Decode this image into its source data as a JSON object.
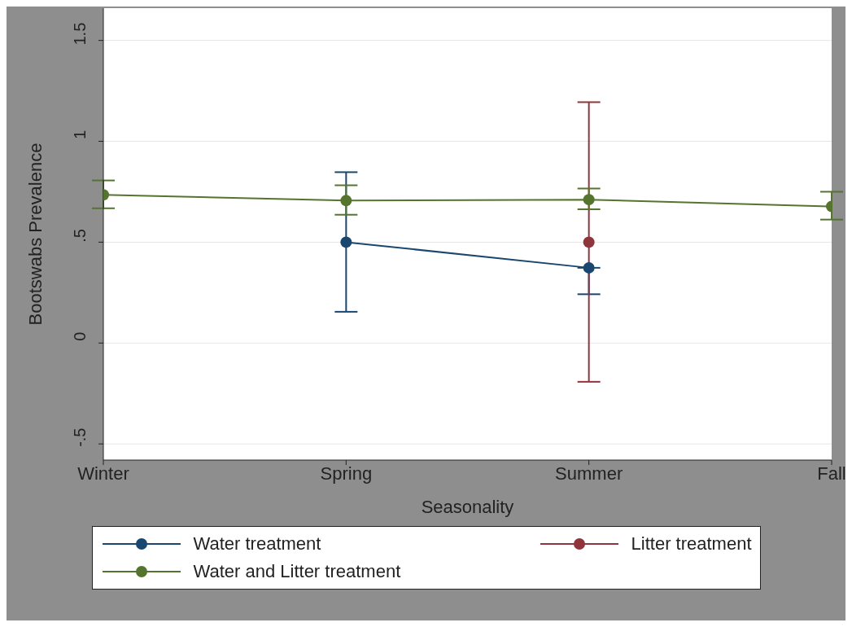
{
  "chart_data": {
    "type": "line",
    "xlabel": "Seasonality",
    "ylabel": "Bootswabs Prevalence",
    "categories": [
      "Winter",
      "Spring",
      "Summer",
      "Fall"
    ],
    "series": [
      {
        "name": "Water treatment",
        "color": "#1a476f",
        "values": [
          null,
          0.5,
          0.373,
          null
        ],
        "errors": [
          null,
          [
            0.155,
            0.847
          ],
          [
            0.242,
            0.373
          ],
          null
        ]
      },
      {
        "name": "Litter treatment",
        "color": "#90353b",
        "values": [
          null,
          null,
          0.5,
          null
        ],
        "errors": [
          null,
          null,
          [
            -0.192,
            1.194
          ],
          null
        ]
      },
      {
        "name": "Water and Litter treatment",
        "color": "#55752f",
        "values": [
          0.735,
          0.706,
          0.711,
          0.677
        ],
        "errors": [
          [
            0.668,
            0.806
          ],
          [
            0.636,
            0.782
          ],
          [
            0.663,
            0.766
          ],
          [
            0.612,
            0.75
          ]
        ]
      }
    ],
    "ylim": [
      -0.58,
      1.66
    ],
    "yticks": [
      {
        "value": -0.5,
        "label": "-.5"
      },
      {
        "value": 0,
        "label": "0"
      },
      {
        "value": 0.5,
        "label": ".5"
      },
      {
        "value": 1,
        "label": "1"
      },
      {
        "value": 1.5,
        "label": "1.5"
      }
    ],
    "grid": "y",
    "legend": "bottom",
    "marker": "circle",
    "line_style": "solid"
  }
}
